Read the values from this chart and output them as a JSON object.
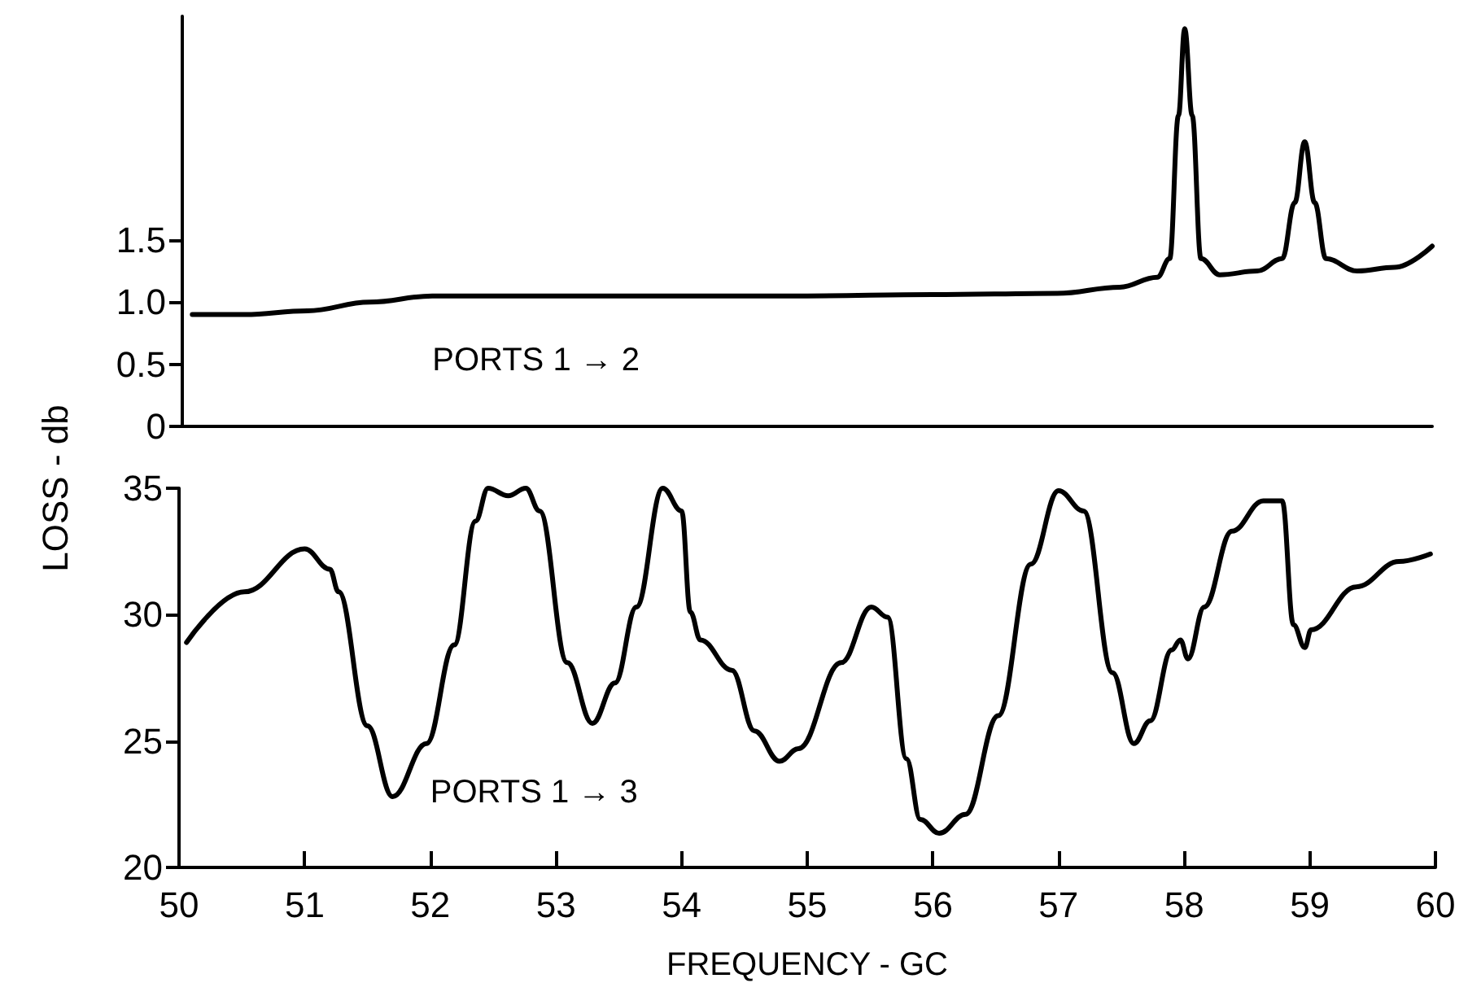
{
  "chart_data": [
    {
      "type": "line",
      "xlim": [
        50,
        60
      ],
      "ylim": [
        0,
        3.3
      ],
      "yticks": [
        0,
        0.5,
        {
          "value": 1,
          "label": "1.0"
        },
        1.5
      ],
      "tick_labels": "y",
      "grid": false,
      "legend": false,
      "marker": "none",
      "line_style": "solid",
      "series": [
        {
          "name": "PORTS 1 → 2",
          "color": "#000000",
          "x": [
            50.08,
            50.5,
            51,
            51.5,
            52,
            53,
            54,
            55,
            56,
            57,
            57.5,
            57.8,
            57.9,
            57.97,
            58.02,
            58.08,
            58.15,
            58.3,
            58.6,
            58.8,
            58.9,
            58.98,
            59.06,
            59.15,
            59.4,
            59.7,
            60
          ],
          "values": [
            0.9,
            0.9,
            0.93,
            1.0,
            1.05,
            1.05,
            1.05,
            1.05,
            1.06,
            1.07,
            1.12,
            1.2,
            1.35,
            2.5,
            3.2,
            2.5,
            1.35,
            1.22,
            1.25,
            1.35,
            1.8,
            2.29,
            1.8,
            1.35,
            1.25,
            1.28,
            1.45
          ]
        }
      ]
    },
    {
      "type": "line",
      "xlabel": "FREQUENCY - GC",
      "ylabel": "LOSS - db",
      "xlim": [
        50,
        60
      ],
      "xticks": [
        50,
        51,
        52,
        53,
        54,
        55,
        56,
        57,
        58,
        59,
        60
      ],
      "ylim": [
        20,
        35
      ],
      "yticks": [
        20,
        25,
        30,
        35
      ],
      "grid": false,
      "legend": false,
      "marker": "none",
      "line_style": "solid",
      "series": [
        {
          "name": "PORTS 1 → 3",
          "color": "#000000",
          "x": [
            50.06,
            50.52,
            51.0,
            51.2,
            51.27,
            51.5,
            51.7,
            51.97,
            52.19,
            52.36,
            52.46,
            52.62,
            52.76,
            52.87,
            53.09,
            53.29,
            53.47,
            53.64,
            53.85,
            54.0,
            54.07,
            54.15,
            54.4,
            54.58,
            54.78,
            54.93,
            55.27,
            55.51,
            55.64,
            55.79,
            55.9,
            56.05,
            56.26,
            56.52,
            56.78,
            57.0,
            57.2,
            57.43,
            57.6,
            57.73,
            57.9,
            57.97,
            58.03,
            58.16,
            58.38,
            58.63,
            58.78,
            58.87,
            58.96,
            59.01,
            59.37,
            59.71,
            59.96
          ],
          "values": [
            28.9,
            30.9,
            32.6,
            31.8,
            30.9,
            25.6,
            22.8,
            24.9,
            28.8,
            33.7,
            35.0,
            34.7,
            35.0,
            34.1,
            28.1,
            25.7,
            27.3,
            30.3,
            35.0,
            34.1,
            30.1,
            29.0,
            27.8,
            25.4,
            24.2,
            24.7,
            28.1,
            30.3,
            29.9,
            24.3,
            21.9,
            21.35,
            22.1,
            26.0,
            32.0,
            34.9,
            34.1,
            27.7,
            24.9,
            25.8,
            28.6,
            29.0,
            28.25,
            30.3,
            33.3,
            34.5,
            34.5,
            29.6,
            28.7,
            29.4,
            31.1,
            32.1,
            32.4
          ]
        }
      ]
    }
  ]
}
